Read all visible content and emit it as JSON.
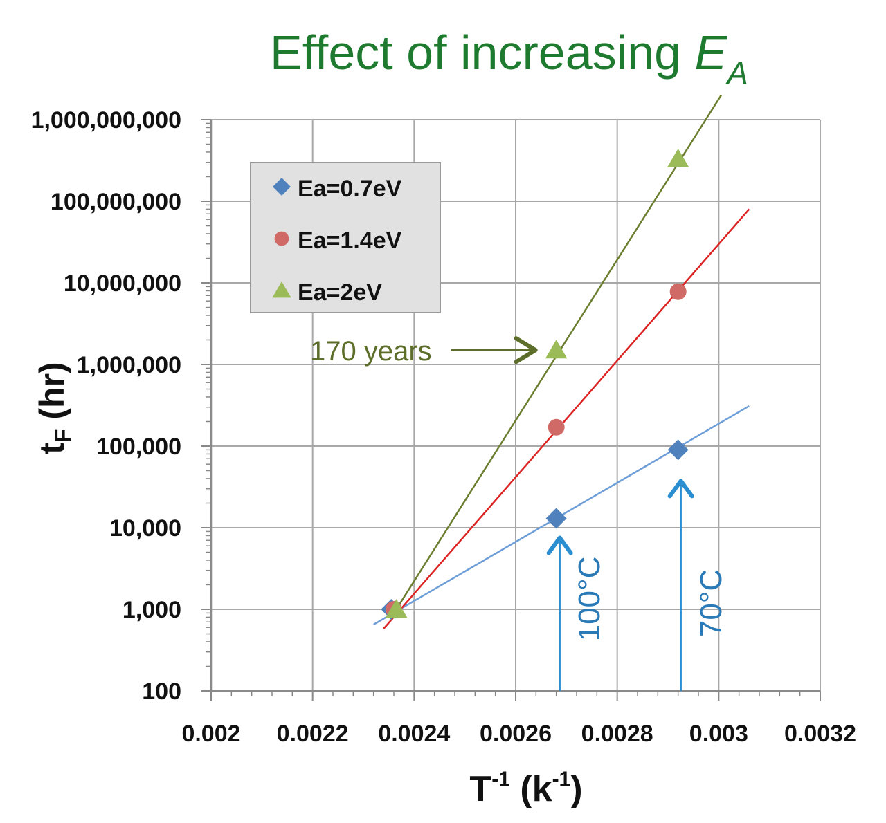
{
  "chart_data": {
    "type": "scatter",
    "title": "Effect of increasing ",
    "title_italic": "E",
    "title_sub": "A",
    "xlabel": {
      "main": "T",
      "sup": "-1",
      "mid": " (k",
      "sup2": "-1",
      "end": ")"
    },
    "ylabel": {
      "main": "t",
      "sub": "F",
      "rest": " (hr)"
    },
    "x_scale": "linear",
    "y_scale": "log",
    "xlim": [
      0.002,
      0.0032
    ],
    "ylim": [
      100,
      1000000000
    ],
    "x_ticks": [
      "0.002",
      "0.0022",
      "0.0024",
      "0.0026",
      "0.0028",
      "0.003",
      "0.0032"
    ],
    "x_tick_values": [
      0.002,
      0.0022,
      0.0024,
      0.0026,
      0.0028,
      0.003,
      0.0032
    ],
    "y_ticks": [
      "100",
      "1,000",
      "10,000",
      "100,000",
      "1,000,000",
      "10,000,000",
      "100,000,000",
      "1,000,000,000"
    ],
    "y_tick_values": [
      100,
      1000,
      10000,
      100000,
      1000000,
      10000000,
      100000000,
      1000000000
    ],
    "grid": true,
    "legend_position": "top-left",
    "series": [
      {
        "name": "Ea=0.7eV",
        "marker": "diamond",
        "color": "#4f81bd",
        "line_color": "#6d9ed8",
        "x": [
          0.002355,
          0.00268,
          0.00292
        ],
        "y": [
          1000,
          13000,
          90000
        ],
        "trend_x": [
          0.00232,
          0.00306
        ],
        "trend_y": [
          650,
          310000
        ]
      },
      {
        "name": "Ea=1.4eV",
        "marker": "circle",
        "color": "#d06a66",
        "line_color": "#dd2222",
        "x": [
          0.00236,
          0.00268,
          0.00292
        ],
        "y": [
          1000,
          170000,
          7800000
        ],
        "trend_x": [
          0.00234,
          0.00306
        ],
        "trend_y": [
          580,
          80000000
        ]
      },
      {
        "name": "Ea=2eV",
        "marker": "triangle",
        "color": "#9bbb59",
        "line_color": "#6b7d2e",
        "x": [
          0.002365,
          0.00268,
          0.00292
        ],
        "y": [
          1000,
          1500000,
          330000000
        ],
        "trend_x": [
          0.002355,
          0.003005
        ],
        "trend_y": [
          800,
          2000000000
        ]
      }
    ],
    "annotations": [
      {
        "text": "170 years",
        "color": "#5c6e2a",
        "points_to": {
          "x": 0.00268,
          "y": 1500000
        }
      },
      {
        "text": "100°C",
        "color": "#2a7ab8",
        "x": 0.00268
      },
      {
        "text": "70°C",
        "color": "#2a7ab8",
        "x": 0.00292
      }
    ]
  }
}
